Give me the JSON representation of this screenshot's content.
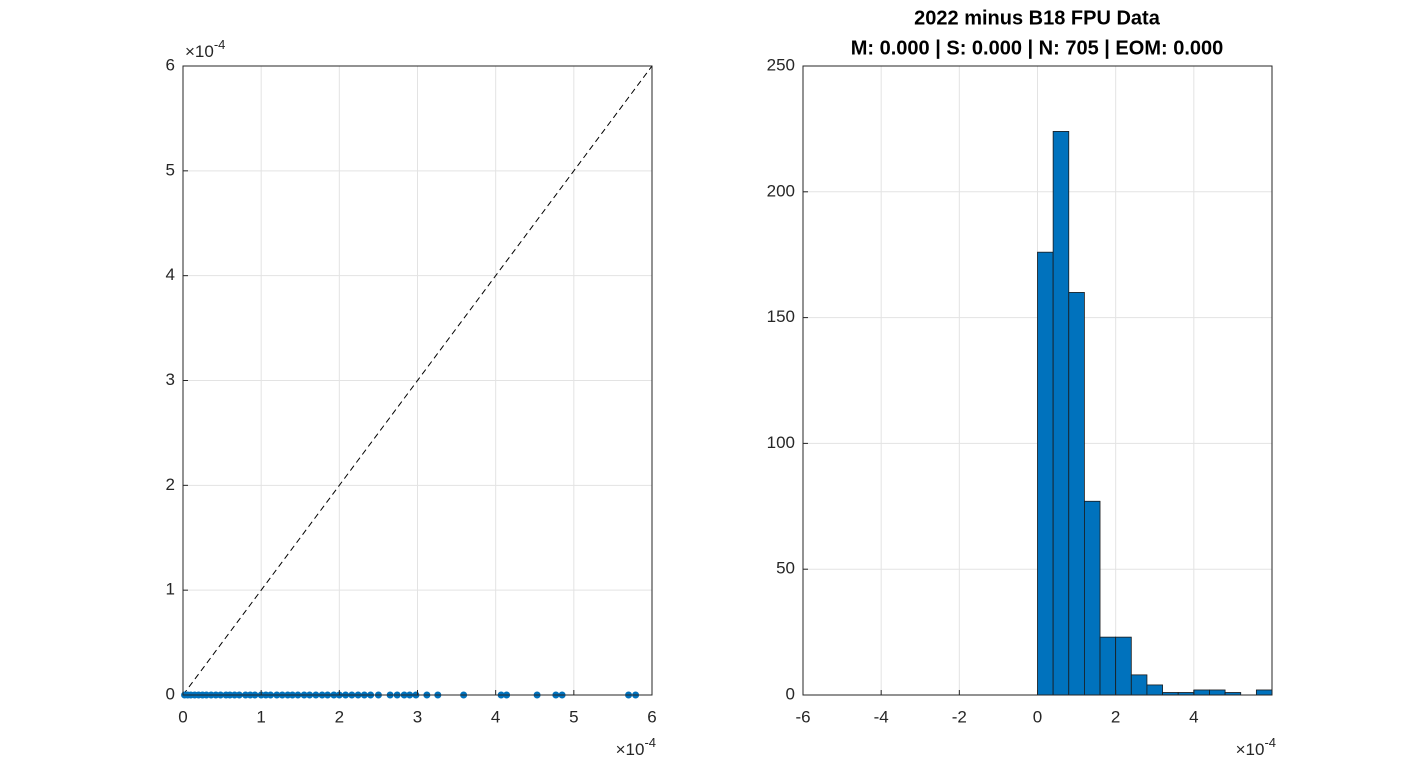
{
  "chart_data": [
    {
      "type": "scatter",
      "x": [
        2e-06,
        6e-06,
        1e-05,
        1.5e-05,
        2e-05,
        2.5e-05,
        3e-05,
        3.6e-05,
        4.2e-05,
        4.8e-05,
        5.5e-05,
        6e-05,
        6.6e-05,
        7.2e-05,
        8e-05,
        8.6e-05,
        9.2e-05,
        0.0001,
        0.000106,
        0.000112,
        0.00012,
        0.000127,
        0.000134,
        0.00014,
        0.000147,
        0.000155,
        0.000162,
        0.00017,
        0.000178,
        0.000185,
        0.000193,
        0.0002,
        0.000208,
        0.000216,
        0.000224,
        0.000232,
        0.00024,
        0.00025,
        0.000265,
        0.000274,
        0.000283,
        0.00029,
        0.000298,
        0.000312,
        0.000326,
        0.000359,
        0.000407,
        0.000414,
        0.000453,
        0.000477,
        0.000485,
        0.00057,
        0.000579
      ],
      "y": [
        0,
        0,
        0,
        0,
        0,
        0,
        0,
        0,
        0,
        0,
        0,
        0,
        0,
        0,
        0,
        0,
        0,
        0,
        0,
        0,
        0,
        0,
        0,
        0,
        0,
        0,
        0,
        0,
        0,
        0,
        0,
        0,
        0,
        0,
        0,
        0,
        0,
        0,
        0,
        0,
        0,
        0,
        0,
        0,
        0,
        0,
        0,
        0,
        0,
        0,
        0,
        0,
        0
      ],
      "color": "#0072bd",
      "identity_line": true,
      "xlim": [
        0,
        0.0006
      ],
      "ylim": [
        0,
        0.0006
      ],
      "xticks": [
        0,
        {
          "value": 0.0001,
          "label": "1"
        },
        {
          "value": 0.0002,
          "label": "2"
        },
        {
          "value": 0.0003,
          "label": "3"
        },
        {
          "value": 0.0004,
          "label": "4"
        },
        {
          "value": 0.0005,
          "label": "5"
        },
        {
          "value": 0.0006,
          "label": "6"
        }
      ],
      "yticks": [
        0,
        {
          "value": 0.0001,
          "label": "1"
        },
        {
          "value": 0.0002,
          "label": "2"
        },
        {
          "value": 0.0003,
          "label": "3"
        },
        {
          "value": 0.0004,
          "label": "4"
        },
        {
          "value": 0.0005,
          "label": "5"
        },
        {
          "value": 0.0006,
          "label": "6"
        }
      ],
      "x_exponent": {
        "base": "×10",
        "power": "-4"
      },
      "y_exponent": {
        "base": "×10",
        "power": "-4"
      },
      "grid": true
    },
    {
      "type": "histogram",
      "title": "2022 minus B18 FPU Data",
      "subtitle": "M: 0.000 | S: 0.000 | N: 705 | EOM: 0.000",
      "bins": [
        -0.0006,
        -0.00056,
        -0.00052,
        -0.00048,
        -0.00044,
        -0.0004,
        -0.00036,
        -0.00032,
        -0.00028,
        -0.00024,
        -0.0002,
        -0.00016,
        -0.00012,
        -8e-05,
        -4e-05,
        0,
        4e-05,
        8e-05,
        0.00012,
        0.00016,
        0.0002,
        0.00024,
        0.00028,
        0.00032,
        0.00036,
        0.0004,
        0.00044,
        0.00048,
        0.00052,
        0.00056,
        0.0006
      ],
      "values": [
        0,
        0,
        0,
        0,
        0,
        0,
        0,
        0,
        0,
        0,
        0,
        0,
        0,
        0,
        0,
        176,
        224,
        160,
        77,
        23,
        23,
        8,
        4,
        1,
        1,
        2,
        2,
        1,
        0,
        2
      ],
      "color": "#0072bd",
      "xlim": [
        -0.0006,
        0.0006
      ],
      "ylim": [
        0,
        250
      ],
      "xticks": [
        {
          "value": -0.0006,
          "label": "-6"
        },
        {
          "value": -0.0004,
          "label": "-4"
        },
        {
          "value": -0.0002,
          "label": "-2"
        },
        0,
        {
          "value": 0.0002,
          "label": "2"
        },
        {
          "value": 0.0004,
          "label": "4"
        }
      ],
      "yticks": [
        0,
        50,
        100,
        150,
        200,
        250
      ],
      "x_exponent": {
        "base": "×10",
        "power": "-4"
      },
      "grid": true
    }
  ]
}
